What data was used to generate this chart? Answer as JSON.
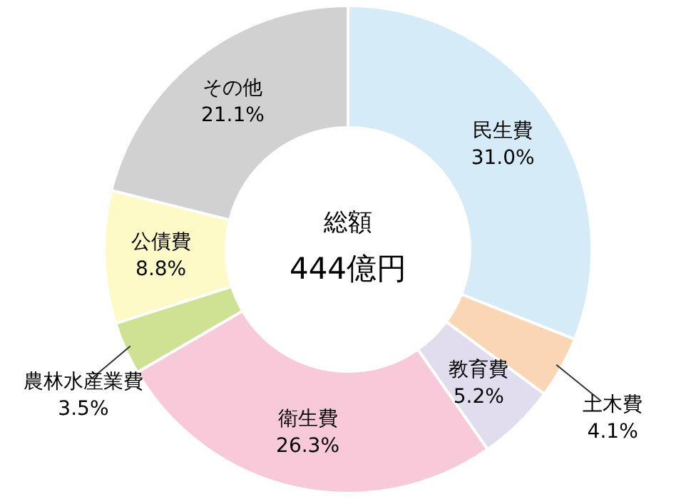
{
  "chart_data": {
    "type": "donut",
    "categories": [
      "民生費",
      "土木費",
      "教育費",
      "衛生費",
      "農林水産業費",
      "公債費",
      "その他"
    ],
    "values": [
      31.0,
      4.1,
      5.2,
      26.3,
      3.5,
      8.8,
      21.1
    ],
    "value_labels": [
      "31.0%",
      "4.1%",
      "5.2%",
      "26.3%",
      "3.5%",
      "8.8%",
      "21.1%"
    ],
    "colors": [
      "#d5ecf8",
      "#fbd6b4",
      "#e1ddef",
      "#f8c9d9",
      "#cfe293",
      "#fefac8",
      "#d1d1d1"
    ],
    "annotations": [
      "総額",
      "444億円"
    ],
    "legend": false
  }
}
